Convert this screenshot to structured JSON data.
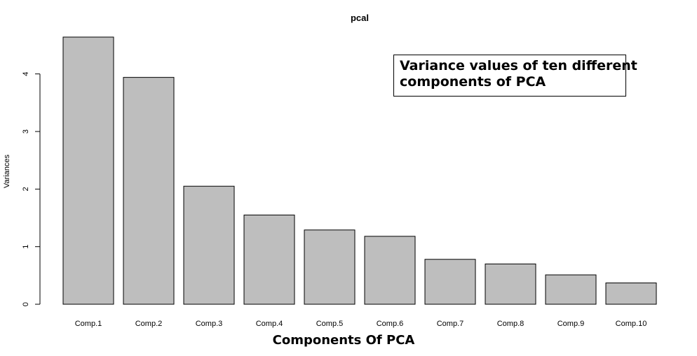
{
  "chart_data": {
    "type": "bar",
    "title": "pcal",
    "xlabel": "Components Of PCA",
    "ylabel": "Variances",
    "categories": [
      "Comp.1",
      "Comp.2",
      "Comp.3",
      "Comp.4",
      "Comp.5",
      "Comp.6",
      "Comp.7",
      "Comp.8",
      "Comp.9",
      "Comp.10"
    ],
    "values": [
      4.64,
      3.94,
      2.05,
      1.55,
      1.29,
      1.18,
      0.78,
      0.7,
      0.51,
      0.37
    ],
    "ylim": [
      0,
      4.64
    ],
    "yticks": [
      "0",
      "1",
      "2",
      "3",
      "4"
    ],
    "grid": false,
    "bar_color": "#bebebe",
    "bar_edge_color": "#000000"
  },
  "annotation": {
    "line1": "Variance values of ten different",
    "line2": "components of PCA"
  }
}
